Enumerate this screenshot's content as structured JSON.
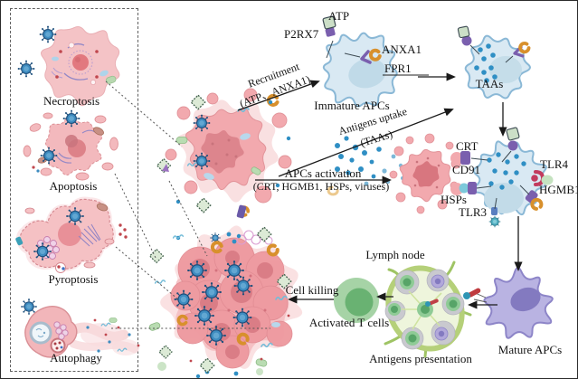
{
  "left_panel": {
    "items": [
      {
        "label": "Necroptosis"
      },
      {
        "label": "Apoptosis"
      },
      {
        "label": "Pyroptosis"
      },
      {
        "label": "Autophagy"
      }
    ]
  },
  "pathway": {
    "recruitment_label": "Recruitment",
    "recruitment_sub": "(ATP、ANXA1)",
    "uptake_label": "Antigens uptake",
    "uptake_sub": "(TAAs)",
    "activation_label": "APCs activation",
    "activation_sub": "(CRT, HGMB1, HSPs, viruses)",
    "cell_killing": "Cell killing"
  },
  "cells": {
    "immature_apc": "Immature APCs",
    "taas": "TAAs",
    "mature_apc": "Mature APCs",
    "activated_t": "Activated T cells",
    "lymph_node": "Lymph node",
    "antigens_presentation": "Antigens presentation"
  },
  "receptors": {
    "atp": "ATP",
    "p2rx7": "P2RX7",
    "anxa1": "ANXA1",
    "fpr1": "FPR1",
    "crt": "CRT",
    "cd91": "CD91",
    "hsps": "HSPs",
    "tlr3": "TLR3",
    "tlr4": "TLR4",
    "hgmb1": "HGMB1"
  },
  "colors": {
    "tumor_pink": "#f0a2a8",
    "tumor_nucleus": "#da7f88",
    "apc_blue_fill": "#d9e9f3",
    "apc_blue_stroke": "#8ab8d6",
    "mature_purple": "#b9b3e2",
    "virus_blue": "#3e8cc0",
    "antigen_dot": "#2f8fc4",
    "receptor_purple": "#7a5fae",
    "damp_orange": "#d8902c",
    "tlr4_red": "#c23b5e",
    "lymph_green": "#9fc464",
    "t_cell_green": "#69b272",
    "diamond_green": "#dcead6"
  }
}
